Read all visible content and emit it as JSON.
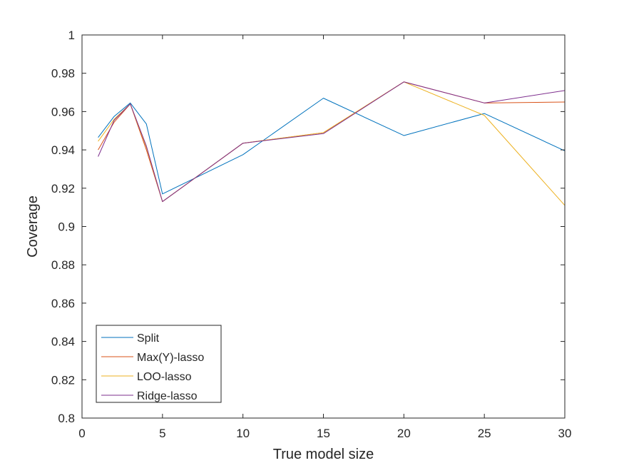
{
  "chart_data": {
    "type": "line",
    "title": "",
    "xlabel": "True model size",
    "ylabel": "Coverage",
    "xlim": [
      0,
      30
    ],
    "ylim": [
      0.8,
      1
    ],
    "xticks": [
      0,
      5,
      10,
      15,
      20,
      25,
      30
    ],
    "yticks": [
      0.8,
      0.82,
      0.84,
      0.86,
      0.88,
      0.9,
      0.92,
      0.94,
      0.96,
      0.98,
      1
    ],
    "xtick_labels": [
      "0",
      "5",
      "10",
      "15",
      "20",
      "25",
      "30"
    ],
    "ytick_labels": [
      "0.8",
      "0.82",
      "0.84",
      "0.86",
      "0.88",
      "0.9",
      "0.92",
      "0.94",
      "0.96",
      "0.98",
      "1"
    ],
    "grid": false,
    "legend_position": "bottom-left",
    "x": [
      1,
      2,
      3,
      4,
      5,
      10,
      15,
      20,
      25,
      30
    ],
    "series": [
      {
        "name": "Split",
        "color": "#0072BD",
        "values": [
          0.9465,
          0.9575,
          0.9645,
          0.9535,
          0.917,
          0.9375,
          0.967,
          0.9475,
          0.959,
          0.9395
        ]
      },
      {
        "name": "Max(Y)-lasso",
        "color": "#D95319",
        "values": [
          0.94,
          0.9545,
          0.964,
          0.94,
          0.913,
          0.9435,
          0.949,
          0.9755,
          0.9645,
          0.965
        ]
      },
      {
        "name": "LOO-lasso",
        "color": "#EDB120",
        "values": [
          0.9445,
          0.956,
          0.964,
          0.9415,
          0.913,
          0.9435,
          0.949,
          0.9755,
          0.958,
          0.911
        ]
      },
      {
        "name": "Ridge-lasso",
        "color": "#7E2F8E",
        "values": [
          0.9365,
          0.9555,
          0.964,
          0.942,
          0.913,
          0.9435,
          0.9485,
          0.9755,
          0.9645,
          0.971
        ]
      }
    ]
  }
}
